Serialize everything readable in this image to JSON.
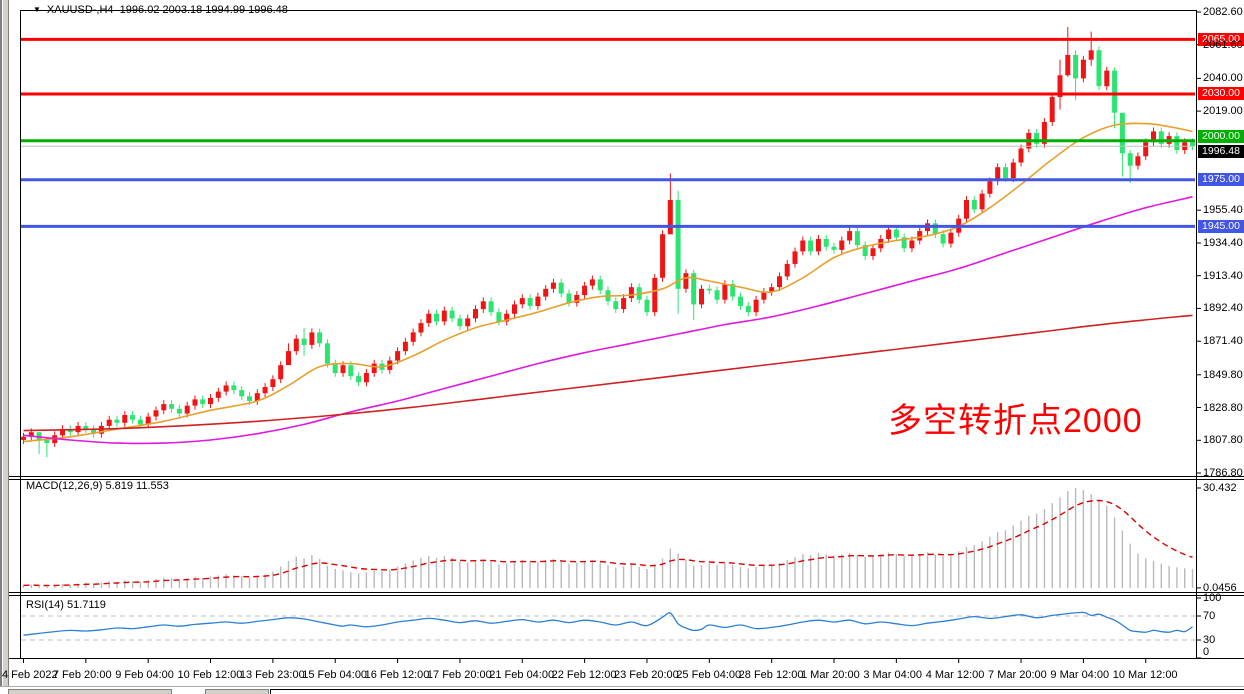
{
  "title": {
    "symbol": "XAUUSD-,H4",
    "ohlc": "1996.02 2003.18 1994.99 1996.48"
  },
  "annotation": {
    "text": "多空转折点2000",
    "color": "#ff0000"
  },
  "indicators": {
    "macd_label": "MACD(12,26,9) 5.819 11.553",
    "rsi_label": "RSI(14) 51.7119"
  },
  "colors": {
    "up": "#f01414",
    "down": "#2ce470",
    "ma_fast": "#e8a02c",
    "ma_mid": "#e018e0",
    "ma_slow": "#d02020",
    "macd_hist": "#b9b9b9",
    "macd_signal": "#dd0000",
    "rsi_line": "#2b80d4",
    "grid_dash": "#bfbfbf",
    "current_line": "#c0c0c0",
    "badge_black": "#000000"
  },
  "axes": {
    "price_ticks": [
      "2082.60",
      "2061.60",
      "2040.00",
      "2019.00",
      "1955.40",
      "1934.40",
      "1913.40",
      "1892.40",
      "1871.40",
      "1849.80",
      "1828.80",
      "1807.80",
      "1786.80"
    ],
    "macd_ticks": [
      "30.432",
      "0.0456"
    ],
    "rsi_ticks": [
      "100",
      "70",
      "30",
      "0"
    ],
    "time_labels": [
      "4 Feb 2022",
      "7 Feb 20:00",
      "9 Feb 04:00",
      "10 Feb 12:00",
      "13 Feb 23:00",
      "15 Feb 04:00",
      "16 Feb 12:00",
      "17 Feb 20:00",
      "21 Feb 04:00",
      "22 Feb 12:00",
      "23 Feb 20:00",
      "25 Feb 04:00",
      "28 Feb 12:00",
      "1 Mar 20:00",
      "3 Mar 04:00",
      "4 Mar 12:00",
      "7 Mar 20:00",
      "9 Mar 04:00",
      "10 Mar 12:00"
    ]
  },
  "levels": [
    {
      "price": 2065.0,
      "label": "2065.00",
      "color": "#ff0000"
    },
    {
      "price": 2030.0,
      "label": "2030.00",
      "color": "#ff0000"
    },
    {
      "price": 2000.0,
      "label": "2000.00",
      "color": "#00b000"
    },
    {
      "price": 1975.0,
      "label": "1975.00",
      "color": "#4255e4"
    },
    {
      "price": 1945.0,
      "label": "1945.00",
      "color": "#4255e4"
    }
  ],
  "current_price": {
    "value": 1996.48,
    "label": "1996.48"
  },
  "chart_data": [
    {
      "type": "candlestick",
      "symbol": "XAUUSD-",
      "timeframe": "H4",
      "title": "XAUUSD- H4 gold price",
      "ylim": [
        1786.8,
        2082.6
      ],
      "x_start": "4 Feb 2022",
      "x_end": "10 Mar 12:00",
      "levels": [
        2065,
        2030,
        2000,
        1975,
        1945
      ],
      "closes": [
        1810,
        1813,
        1808,
        1806,
        1811,
        1815,
        1813,
        1817,
        1815,
        1812,
        1817,
        1821,
        1819,
        1824,
        1821,
        1818,
        1823,
        1827,
        1831,
        1828,
        1825,
        1830,
        1834,
        1831,
        1835,
        1839,
        1843,
        1840,
        1836,
        1833,
        1838,
        1842,
        1847,
        1856,
        1865,
        1873,
        1869,
        1877,
        1870,
        1857,
        1851,
        1856,
        1849,
        1845,
        1851,
        1857,
        1853,
        1859,
        1865,
        1871,
        1877,
        1883,
        1889,
        1884,
        1891,
        1886,
        1881,
        1886,
        1892,
        1897,
        1890,
        1884,
        1889,
        1895,
        1899,
        1894,
        1900,
        1905,
        1909,
        1902,
        1896,
        1901,
        1907,
        1911,
        1904,
        1897,
        1892,
        1899,
        1906,
        1898,
        1890,
        1912,
        1940,
        1962,
        1905,
        1915,
        1895,
        1905,
        1904,
        1898,
        1908,
        1900,
        1894,
        1890,
        1898,
        1903,
        1906,
        1913,
        1921,
        1929,
        1936,
        1929,
        1937,
        1932,
        1930,
        1936,
        1942,
        1933,
        1926,
        1931,
        1937,
        1943,
        1938,
        1931,
        1936,
        1942,
        1947,
        1940,
        1934,
        1941,
        1950,
        1962,
        1956,
        1966,
        1974,
        1983,
        1976,
        1986,
        1995,
        2005,
        1998,
        2012,
        2028,
        2042,
        2055,
        2040,
        2052,
        2058,
        2035,
        2045,
        2018,
        1992,
        1984,
        1990,
        1999,
        2006,
        1998,
        2003,
        1994,
        1999,
        1996.5
      ],
      "wick_overrides": {
        "2": [
          1812,
          1799
        ],
        "3": [
          1810,
          1797
        ],
        "34": [
          1870,
          1858
        ],
        "36": [
          1880,
          1862
        ],
        "83": [
          1979,
          1952
        ],
        "84": [
          1968,
          1889
        ],
        "86": [
          1917,
          1885
        ],
        "133": [
          2052,
          2020
        ],
        "134": [
          2073,
          2041
        ],
        "135": [
          2058,
          2026
        ],
        "137": [
          2070,
          2048
        ],
        "140": [
          2047,
          2008
        ],
        "141": [
          2006,
          1977
        ],
        "142": [
          1994,
          1973
        ]
      },
      "ma_fast_points": [
        [
          0,
          1807
        ],
        [
          6,
          1810
        ],
        [
          12,
          1815
        ],
        [
          18,
          1820
        ],
        [
          24,
          1827
        ],
        [
          30,
          1833
        ],
        [
          34,
          1843
        ],
        [
          38,
          1855
        ],
        [
          42,
          1857
        ],
        [
          46,
          1855
        ],
        [
          50,
          1862
        ],
        [
          54,
          1872
        ],
        [
          58,
          1880
        ],
        [
          62,
          1885
        ],
        [
          66,
          1890
        ],
        [
          70,
          1896
        ],
        [
          74,
          1900
        ],
        [
          78,
          1901
        ],
        [
          82,
          1905
        ],
        [
          85,
          1912
        ],
        [
          88,
          1910
        ],
        [
          92,
          1906
        ],
        [
          96,
          1903
        ],
        [
          100,
          1912
        ],
        [
          104,
          1925
        ],
        [
          108,
          1932
        ],
        [
          112,
          1936
        ],
        [
          116,
          1939
        ],
        [
          120,
          1945
        ],
        [
          124,
          1957
        ],
        [
          128,
          1972
        ],
        [
          132,
          1988
        ],
        [
          136,
          2002
        ],
        [
          140,
          2010
        ],
        [
          144,
          2011
        ],
        [
          147,
          2009
        ],
        [
          150,
          2006
        ]
      ],
      "ma_mid_points": [
        [
          0,
          1811
        ],
        [
          6,
          1808
        ],
        [
          12,
          1806
        ],
        [
          18,
          1806
        ],
        [
          24,
          1808
        ],
        [
          30,
          1812
        ],
        [
          36,
          1818
        ],
        [
          42,
          1826
        ],
        [
          48,
          1833
        ],
        [
          54,
          1841
        ],
        [
          60,
          1849
        ],
        [
          66,
          1857
        ],
        [
          72,
          1864
        ],
        [
          78,
          1870
        ],
        [
          84,
          1876
        ],
        [
          90,
          1882
        ],
        [
          96,
          1887
        ],
        [
          102,
          1894
        ],
        [
          108,
          1902
        ],
        [
          114,
          1910
        ],
        [
          120,
          1918
        ],
        [
          126,
          1928
        ],
        [
          132,
          1938
        ],
        [
          138,
          1948
        ],
        [
          144,
          1957
        ],
        [
          150,
          1964
        ]
      ],
      "ma_slow_points": [
        [
          0,
          1814
        ],
        [
          10,
          1815
        ],
        [
          20,
          1817
        ],
        [
          30,
          1820
        ],
        [
          40,
          1824
        ],
        [
          50,
          1829
        ],
        [
          60,
          1835
        ],
        [
          70,
          1841
        ],
        [
          80,
          1847
        ],
        [
          90,
          1853
        ],
        [
          100,
          1859
        ],
        [
          110,
          1865
        ],
        [
          120,
          1871
        ],
        [
          130,
          1877
        ],
        [
          140,
          1883
        ],
        [
          150,
          1888
        ]
      ]
    },
    {
      "type": "bar",
      "name": "MACD(12,26,9) histogram",
      "current_main": 5.819,
      "current_signal": 11.553,
      "ylim": [
        0,
        30.432
      ],
      "signal_note": "signal line = EMA9 of values, red dashed",
      "values": [
        0.8,
        1.0,
        0.7,
        0.5,
        0.9,
        1.2,
        1.0,
        1.4,
        1.6,
        1.4,
        1.7,
        2.1,
        1.9,
        2.3,
        2.1,
        1.9,
        2.3,
        2.7,
        3.1,
        2.9,
        2.6,
        3.0,
        3.4,
        3.1,
        3.5,
        3.8,
        4.2,
        3.9,
        3.6,
        3.3,
        3.7,
        4.1,
        5.0,
        6.5,
        8.2,
        9.6,
        9.0,
        10.0,
        8.8,
        6.8,
        5.8,
        5.4,
        4.8,
        4.4,
        4.8,
        5.3,
        5.0,
        5.5,
        6.5,
        7.5,
        8.4,
        9.2,
        9.8,
        9.2,
        9.8,
        9.2,
        8.2,
        7.8,
        8.3,
        8.8,
        8.1,
        7.2,
        7.5,
        8.0,
        8.4,
        7.8,
        8.0,
        8.5,
        8.9,
        8.2,
        7.4,
        7.7,
        8.1,
        8.5,
        7.8,
        6.9,
        6.2,
        6.6,
        7.1,
        6.4,
        5.8,
        6.8,
        9.0,
        12.0,
        10.5,
        8.5,
        6.8,
        7.0,
        7.6,
        7.0,
        7.6,
        7.0,
        6.4,
        5.9,
        6.4,
        6.9,
        7.0,
        7.6,
        8.5,
        9.4,
        10.3,
        10.0,
        10.7,
        10.3,
        9.9,
        10.2,
        10.7,
        10.1,
        9.5,
        9.7,
        10.2,
        10.8,
        10.3,
        9.7,
        9.9,
        10.4,
        10.9,
        10.3,
        9.7,
        10.2,
        11.2,
        12.5,
        13.0,
        14.2,
        15.6,
        17.0,
        17.6,
        19.0,
        20.5,
        22.0,
        22.6,
        24.0,
        25.8,
        27.6,
        29.5,
        30.4,
        29.8,
        28.6,
        27.0,
        25.0,
        21.5,
        17.5,
        13.5,
        10.5,
        9.0,
        8.2,
        7.4,
        6.8,
        6.3,
        6.0,
        5.82
      ]
    },
    {
      "type": "line",
      "name": "RSI(14)",
      "current": 51.7119,
      "ylim": [
        0,
        100
      ],
      "levels": [
        70,
        30
      ],
      "points": [
        [
          0,
          38
        ],
        [
          2,
          41
        ],
        [
          4,
          44
        ],
        [
          6,
          46
        ],
        [
          8,
          45
        ],
        [
          10,
          47
        ],
        [
          12,
          50
        ],
        [
          14,
          49
        ],
        [
          16,
          52
        ],
        [
          18,
          55
        ],
        [
          20,
          53
        ],
        [
          22,
          56
        ],
        [
          24,
          58
        ],
        [
          26,
          60
        ],
        [
          28,
          58
        ],
        [
          30,
          61
        ],
        [
          32,
          64
        ],
        [
          34,
          67
        ],
        [
          36,
          65
        ],
        [
          38,
          60
        ],
        [
          40,
          55
        ],
        [
          41,
          53
        ],
        [
          42,
          55
        ],
        [
          44,
          52
        ],
        [
          46,
          55
        ],
        [
          48,
          60
        ],
        [
          50,
          63
        ],
        [
          52,
          66
        ],
        [
          54,
          63
        ],
        [
          56,
          59
        ],
        [
          58,
          62
        ],
        [
          60,
          58
        ],
        [
          62,
          61
        ],
        [
          64,
          64
        ],
        [
          66,
          60
        ],
        [
          68,
          63
        ],
        [
          70,
          59
        ],
        [
          72,
          63
        ],
        [
          74,
          60
        ],
        [
          76,
          55
        ],
        [
          78,
          60
        ],
        [
          80,
          54
        ],
        [
          82,
          68
        ],
        [
          83,
          75
        ],
        [
          84,
          57
        ],
        [
          85,
          50
        ],
        [
          86,
          46
        ],
        [
          87,
          48
        ],
        [
          88,
          55
        ],
        [
          90,
          51
        ],
        [
          92,
          55
        ],
        [
          94,
          49
        ],
        [
          96,
          51
        ],
        [
          98,
          55
        ],
        [
          100,
          60
        ],
        [
          102,
          63
        ],
        [
          104,
          60
        ],
        [
          106,
          63
        ],
        [
          108,
          57
        ],
        [
          110,
          60
        ],
        [
          112,
          57
        ],
        [
          114,
          54
        ],
        [
          116,
          58
        ],
        [
          118,
          61
        ],
        [
          120,
          65
        ],
        [
          122,
          69
        ],
        [
          124,
          66
        ],
        [
          126,
          69
        ],
        [
          128,
          72
        ],
        [
          130,
          67
        ],
        [
          132,
          71
        ],
        [
          134,
          74
        ],
        [
          136,
          76
        ],
        [
          137,
          71
        ],
        [
          138,
          73
        ],
        [
          139,
          68
        ],
        [
          140,
          63
        ],
        [
          141,
          55
        ],
        [
          142,
          46
        ],
        [
          143,
          44
        ],
        [
          144,
          43
        ],
        [
          145,
          46
        ],
        [
          146,
          44
        ],
        [
          147,
          43
        ],
        [
          148,
          46
        ],
        [
          149,
          44
        ],
        [
          150,
          52
        ]
      ]
    }
  ]
}
